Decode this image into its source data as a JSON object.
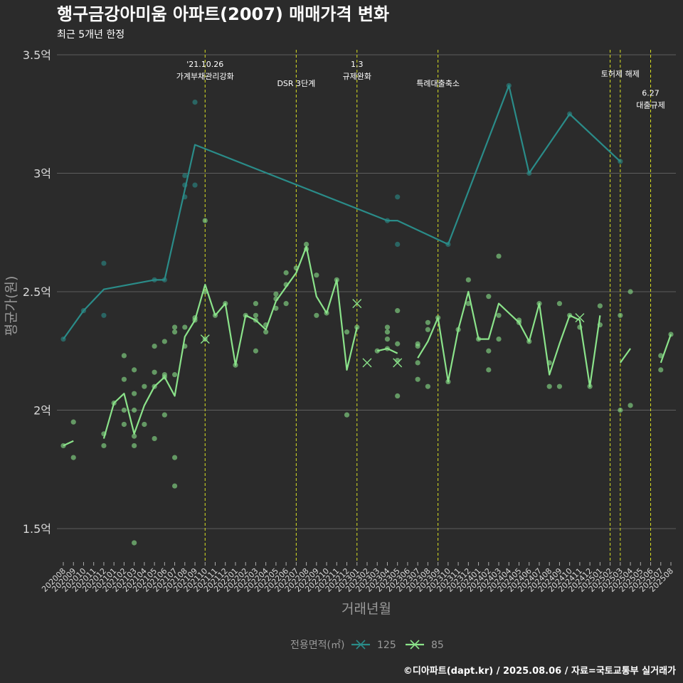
{
  "title": "행구금강아미움 아파트(2007) 매매가격 변화",
  "subtitle": "최근 5개년 한정",
  "caption": "©디아파트(dapt.kr) / 2025.08.06 / 자료=국토교통부 실거래가",
  "colors": {
    "background": "#2b2b2b",
    "grid": "#5e5e5e",
    "series_125": "#2a8c89",
    "series_85": "#8be38a",
    "event_line": "#d9e021",
    "text_muted": "#9a9a9a"
  },
  "chart_data": {
    "type": "line",
    "xlabel": "거래년월",
    "ylabel": "평균가(원)",
    "ylim": [
      1.35,
      3.52
    ],
    "yticks": [
      {
        "value": 1.5,
        "label": "1.5억"
      },
      {
        "value": 2.0,
        "label": "2억"
      },
      {
        "value": 2.5,
        "label": "2.5억"
      },
      {
        "value": 3.0,
        "label": "3억"
      },
      {
        "value": 3.5,
        "label": "3.5억"
      }
    ],
    "categories": [
      "202008",
      "202009",
      "202010",
      "202011",
      "202012",
      "202101",
      "202102",
      "202103",
      "202104",
      "202105",
      "202106",
      "202107",
      "202108",
      "202109",
      "202110",
      "202111",
      "202112",
      "202201",
      "202202",
      "202203",
      "202204",
      "202205",
      "202206",
      "202207",
      "202208",
      "202209",
      "202210",
      "202211",
      "202212",
      "202301",
      "202302",
      "202303",
      "202304",
      "202305",
      "202306",
      "202307",
      "202308",
      "202309",
      "202310",
      "202311",
      "202312",
      "202401",
      "202402",
      "202403",
      "202404",
      "202405",
      "202406",
      "202407",
      "202408",
      "202409",
      "202410",
      "202411",
      "202412",
      "202501",
      "202502",
      "202503",
      "202504",
      "202505",
      "202506",
      "202507",
      "202508"
    ],
    "legend": {
      "title": "전용면적(㎡)",
      "items": [
        {
          "name": "125",
          "color": "#2a8c89"
        },
        {
          "name": "85",
          "color": "#8be38a"
        }
      ]
    },
    "series": [
      {
        "name": "125",
        "color": "#2a8c89",
        "line": [
          [
            "202008",
            2.3
          ],
          [
            "202010",
            2.42
          ],
          [
            "202012",
            2.51
          ],
          [
            "202105",
            2.55
          ],
          [
            "202106",
            2.55
          ],
          [
            "202109",
            3.12
          ],
          [
            "202304",
            2.8
          ],
          [
            "202305",
            2.8
          ],
          [
            "202310",
            2.7
          ],
          [
            "202404",
            3.37
          ],
          [
            "202406",
            3.0
          ],
          [
            "202410",
            3.25
          ],
          [
            "202503",
            3.05
          ]
        ],
        "points": [
          [
            "202008",
            2.3
          ],
          [
            "202010",
            2.42
          ],
          [
            "202012",
            2.62
          ],
          [
            "202012",
            2.4
          ],
          [
            "202105",
            2.55
          ],
          [
            "202106",
            2.55
          ],
          [
            "202108",
            2.99
          ],
          [
            "202108",
            2.95
          ],
          [
            "202108",
            2.9
          ],
          [
            "202109",
            3.3
          ],
          [
            "202109",
            2.95
          ],
          [
            "202304",
            2.8
          ],
          [
            "202305",
            2.9
          ],
          [
            "202305",
            2.7
          ],
          [
            "202310",
            2.7
          ],
          [
            "202404",
            3.37
          ],
          [
            "202406",
            3.0
          ],
          [
            "202410",
            3.25
          ],
          [
            "202503",
            3.05
          ]
        ],
        "cancelled": []
      },
      {
        "name": "85",
        "color": "#8be38a",
        "segments": [
          [
            [
              "202008",
              1.85
            ],
            [
              "202009",
              1.87
            ]
          ],
          [
            [
              "202012",
              1.88
            ],
            [
              "202101",
              2.03
            ],
            [
              "202102",
              2.07
            ],
            [
              "202103",
              1.9
            ],
            [
              "202104",
              2.02
            ],
            [
              "202105",
              2.1
            ],
            [
              "202106",
              2.14
            ],
            [
              "202107",
              2.06
            ],
            [
              "202108",
              2.31
            ],
            [
              "202109",
              2.38
            ],
            [
              "202110",
              2.53
            ],
            [
              "202111",
              2.4
            ],
            [
              "202112",
              2.45
            ],
            [
              "202201",
              2.19
            ],
            [
              "202202",
              2.4
            ],
            [
              "202203",
              2.38
            ],
            [
              "202204",
              2.34
            ],
            [
              "202205",
              2.46
            ],
            [
              "202206",
              2.52
            ],
            [
              "202207",
              2.58
            ],
            [
              "202208",
              2.69
            ],
            [
              "202209",
              2.48
            ],
            [
              "202210",
              2.41
            ],
            [
              "202211",
              2.55
            ],
            [
              "202212",
              2.17
            ],
            [
              "202301",
              2.35
            ]
          ],
          [
            [
              "202303",
              2.25
            ],
            [
              "202304",
              2.26
            ],
            [
              "202305",
              2.24
            ]
          ],
          [
            [
              "202307",
              2.22
            ],
            [
              "202308",
              2.29
            ],
            [
              "202309",
              2.39
            ],
            [
              "202310",
              2.12
            ],
            [
              "202311",
              2.34
            ],
            [
              "202312",
              2.5
            ],
            [
              "202401",
              2.3
            ],
            [
              "202402",
              2.3
            ],
            [
              "202403",
              2.45
            ],
            [
              "202404",
              2.41
            ],
            [
              "202405",
              2.37
            ],
            [
              "202406",
              2.29
            ],
            [
              "202407",
              2.45
            ],
            [
              "202408",
              2.15
            ],
            [
              "202409",
              2.28
            ],
            [
              "202410",
              2.4
            ],
            [
              "202411",
              2.38
            ],
            [
              "202412",
              2.1
            ],
            [
              "202501",
              2.4
            ]
          ],
          [
            [
              "202503",
              2.2
            ],
            [
              "202504",
              2.26
            ]
          ],
          [
            [
              "202507",
              2.2
            ],
            [
              "202508",
              2.32
            ]
          ]
        ],
        "points": [
          [
            "202008",
            1.85
          ],
          [
            "202009",
            1.95
          ],
          [
            "202009",
            1.8
          ],
          [
            "202012",
            1.9
          ],
          [
            "202012",
            1.85
          ],
          [
            "202101",
            2.03
          ],
          [
            "202102",
            2.23
          ],
          [
            "202102",
            2.13
          ],
          [
            "202102",
            2.0
          ],
          [
            "202102",
            1.94
          ],
          [
            "202103",
            2.17
          ],
          [
            "202103",
            2.07
          ],
          [
            "202103",
            2.0
          ],
          [
            "202103",
            1.89
          ],
          [
            "202103",
            1.85
          ],
          [
            "202103",
            1.44
          ],
          [
            "202104",
            2.1
          ],
          [
            "202104",
            1.94
          ],
          [
            "202105",
            2.27
          ],
          [
            "202105",
            2.16
          ],
          [
            "202105",
            2.1
          ],
          [
            "202105",
            1.88
          ],
          [
            "202106",
            2.29
          ],
          [
            "202106",
            2.15
          ],
          [
            "202106",
            2.14
          ],
          [
            "202106",
            1.98
          ],
          [
            "202107",
            2.35
          ],
          [
            "202107",
            2.33
          ],
          [
            "202107",
            2.15
          ],
          [
            "202107",
            1.8
          ],
          [
            "202107",
            1.68
          ],
          [
            "202108",
            2.35
          ],
          [
            "202108",
            2.27
          ],
          [
            "202109",
            2.39
          ],
          [
            "202109",
            2.38
          ],
          [
            "202110",
            2.8
          ],
          [
            "202110",
            2.5
          ],
          [
            "202110",
            2.3
          ],
          [
            "202111",
            2.4
          ],
          [
            "202112",
            2.45
          ],
          [
            "202201",
            2.19
          ],
          [
            "202202",
            2.4
          ],
          [
            "202203",
            2.45
          ],
          [
            "202203",
            2.4
          ],
          [
            "202203",
            2.38
          ],
          [
            "202203",
            2.25
          ],
          [
            "202204",
            2.36
          ],
          [
            "202204",
            2.33
          ],
          [
            "202205",
            2.49
          ],
          [
            "202205",
            2.47
          ],
          [
            "202205",
            2.43
          ],
          [
            "202206",
            2.58
          ],
          [
            "202206",
            2.53
          ],
          [
            "202206",
            2.45
          ],
          [
            "202207",
            2.6
          ],
          [
            "202208",
            2.7
          ],
          [
            "202208",
            2.68
          ],
          [
            "202209",
            2.57
          ],
          [
            "202209",
            2.4
          ],
          [
            "202210",
            2.41
          ],
          [
            "202211",
            2.55
          ],
          [
            "202212",
            2.33
          ],
          [
            "202212",
            1.98
          ],
          [
            "202301",
            2.35
          ],
          [
            "202303",
            2.25
          ],
          [
            "202304",
            2.35
          ],
          [
            "202304",
            2.33
          ],
          [
            "202304",
            2.3
          ],
          [
            "202304",
            2.26
          ],
          [
            "202305",
            2.42
          ],
          [
            "202305",
            2.28
          ],
          [
            "202305",
            2.21
          ],
          [
            "202305",
            2.06
          ],
          [
            "202307",
            2.28
          ],
          [
            "202307",
            2.27
          ],
          [
            "202307",
            2.2
          ],
          [
            "202307",
            2.13
          ],
          [
            "202308",
            2.37
          ],
          [
            "202308",
            2.34
          ],
          [
            "202308",
            2.1
          ],
          [
            "202309",
            2.39
          ],
          [
            "202310",
            2.12
          ],
          [
            "202311",
            2.34
          ],
          [
            "202312",
            2.55
          ],
          [
            "202312",
            2.45
          ],
          [
            "202401",
            2.3
          ],
          [
            "202402",
            2.48
          ],
          [
            "202402",
            2.25
          ],
          [
            "202402",
            2.17
          ],
          [
            "202403",
            2.65
          ],
          [
            "202403",
            2.4
          ],
          [
            "202403",
            2.3
          ],
          [
            "202405",
            2.38
          ],
          [
            "202405",
            2.37
          ],
          [
            "202406",
            2.29
          ],
          [
            "202407",
            2.45
          ],
          [
            "202408",
            2.2
          ],
          [
            "202408",
            2.1
          ],
          [
            "202409",
            2.45
          ],
          [
            "202409",
            2.1
          ],
          [
            "202410",
            2.4
          ],
          [
            "202411",
            2.35
          ],
          [
            "202412",
            2.1
          ],
          [
            "202501",
            2.44
          ],
          [
            "202501",
            2.36
          ],
          [
            "202503",
            2.4
          ],
          [
            "202503",
            2.0
          ],
          [
            "202504",
            2.5
          ],
          [
            "202504",
            2.02
          ],
          [
            "202507",
            2.23
          ],
          [
            "202507",
            2.17
          ],
          [
            "202508",
            2.32
          ]
        ],
        "cancelled": [
          [
            "202110",
            2.3
          ],
          [
            "202301",
            2.45
          ],
          [
            "202302",
            2.2
          ],
          [
            "202305",
            2.2
          ],
          [
            "202411",
            2.39
          ]
        ]
      }
    ],
    "events": [
      {
        "x": "202110",
        "lines": [
          "'21.10.26",
          "가계부채관리강화"
        ],
        "level": 0
      },
      {
        "x": "202207",
        "lines": [
          "DSR 3단계"
        ],
        "level": 1
      },
      {
        "x": "202301",
        "lines": [
          "1.3",
          "규제완화"
        ],
        "level": 0
      },
      {
        "x": "202309",
        "lines": [
          "특례대출축소"
        ],
        "level": 1
      },
      {
        "x": "202502",
        "lines": [],
        "level": 0
      },
      {
        "x": "202503",
        "lines": [
          "토허제 해제"
        ],
        "level": 0.5
      },
      {
        "x": "202506",
        "lines": [
          "6.27",
          "대출규제"
        ],
        "level": 1.5
      }
    ]
  }
}
